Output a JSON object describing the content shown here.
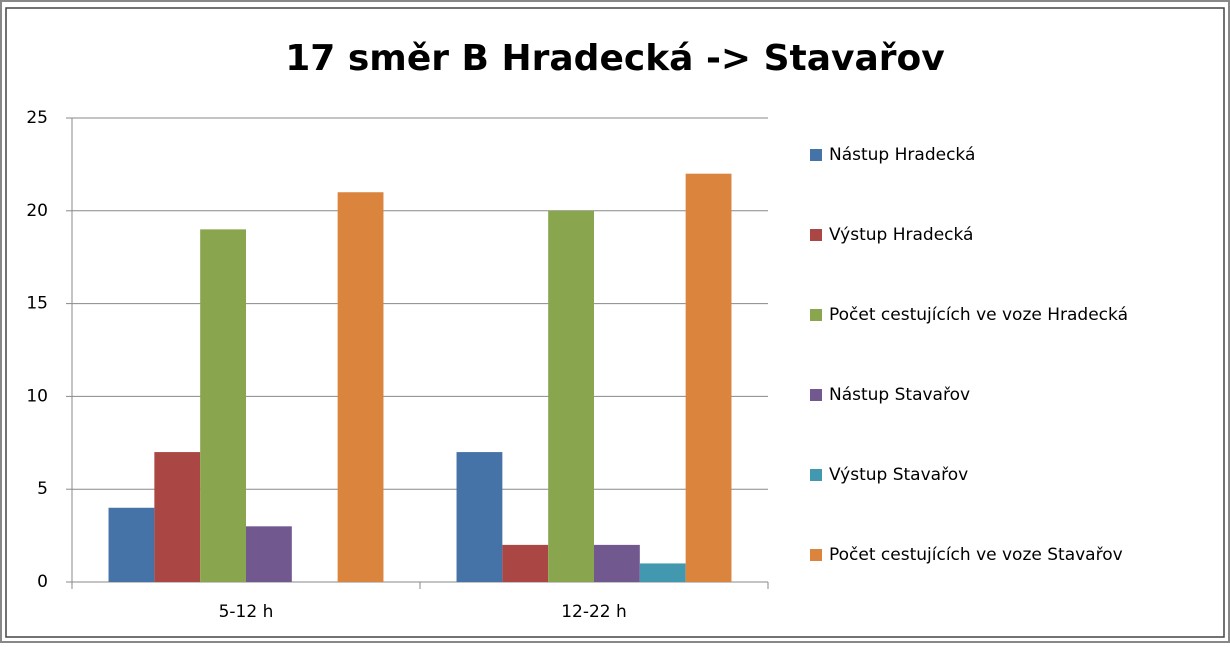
{
  "chart_data": {
    "type": "bar",
    "title": "17 směr B Hradecká -> Stavařov",
    "categories": [
      "5-12 h",
      "12-22 h"
    ],
    "series": [
      {
        "name": "Nástup Hradecká",
        "color": "#4572a7",
        "values": [
          4,
          7
        ]
      },
      {
        "name": "Výstup Hradecká",
        "color": "#aa4643",
        "values": [
          7,
          2
        ]
      },
      {
        "name": "Počet cestujících ve voze Hradecká",
        "color": "#89a54e",
        "values": [
          19,
          20
        ]
      },
      {
        "name": "Nástup Stavařov",
        "color": "#71588f",
        "values": [
          3,
          2
        ]
      },
      {
        "name": "Výstup Stavařov",
        "color": "#4198af",
        "values": [
          0,
          1
        ]
      },
      {
        "name": "Počet cestujících ve voze Stavařov",
        "color": "#db843d",
        "values": [
          21,
          22
        ]
      }
    ],
    "ylim": [
      0,
      25
    ],
    "yticks": [
      0,
      5,
      10,
      15,
      20,
      25
    ],
    "grid": true,
    "legend": "right"
  }
}
